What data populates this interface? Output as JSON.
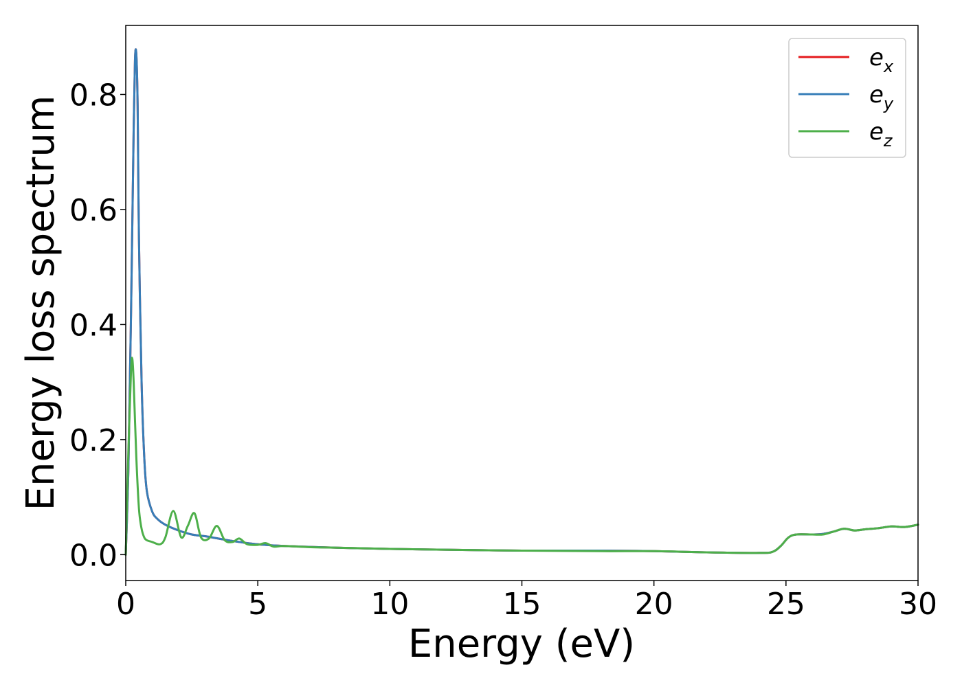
{
  "chart_data": {
    "type": "line",
    "xlabel": "Energy (eV)",
    "ylabel": "Energy loss spectrum",
    "xlim": [
      0,
      30
    ],
    "ylim": [
      -0.045,
      0.92
    ],
    "xticks": [
      0,
      5,
      10,
      15,
      20,
      25,
      30
    ],
    "xtick_labels": [
      "0",
      "5",
      "10",
      "15",
      "20",
      "25",
      "30"
    ],
    "yticks": [
      0.0,
      0.2,
      0.4,
      0.6,
      0.8
    ],
    "ytick_labels": [
      "0.0",
      "0.2",
      "0.4",
      "0.6",
      "0.8"
    ],
    "grid": false,
    "legend_position": "top-right",
    "series": [
      {
        "name": "e_x",
        "legend_base": "e",
        "legend_sub": "x",
        "color": "#e41a1c",
        "x": [
          0,
          0.1,
          0.2,
          0.3,
          0.35,
          0.4,
          0.45,
          0.5,
          0.6,
          0.7,
          0.8,
          1.0,
          1.2,
          1.5,
          2.0,
          2.5,
          3.0,
          3.5,
          4.0,
          5.0,
          6.0,
          8.0,
          10.0,
          13.0,
          15.0,
          18.0,
          20.0,
          22.0,
          24.0,
          24.5,
          24.8,
          25.1,
          25.4,
          26.0,
          26.4,
          26.8,
          27.2,
          27.6,
          28.0,
          28.5,
          29.0,
          29.5,
          30.0
        ],
        "y": [
          0.0,
          0.15,
          0.42,
          0.74,
          0.86,
          0.87,
          0.78,
          0.55,
          0.3,
          0.17,
          0.11,
          0.075,
          0.062,
          0.052,
          0.042,
          0.035,
          0.032,
          0.028,
          0.024,
          0.018,
          0.015,
          0.012,
          0.01,
          0.008,
          0.007,
          0.007,
          0.006,
          0.004,
          0.003,
          0.005,
          0.015,
          0.03,
          0.035,
          0.035,
          0.036,
          0.04,
          0.045,
          0.042,
          0.044,
          0.046,
          0.049,
          0.048,
          0.052
        ]
      },
      {
        "name": "e_y",
        "legend_base": "e",
        "legend_sub": "y",
        "color": "#377eb8",
        "x": [
          0,
          0.1,
          0.2,
          0.3,
          0.35,
          0.4,
          0.45,
          0.5,
          0.6,
          0.7,
          0.8,
          1.0,
          1.2,
          1.5,
          2.0,
          2.5,
          3.0,
          3.5,
          4.0,
          5.0,
          6.0,
          8.0,
          10.0,
          13.0,
          15.0,
          18.0,
          20.0,
          22.0,
          24.0,
          24.5,
          24.8,
          25.1,
          25.4,
          26.0,
          26.4,
          26.8,
          27.2,
          27.6,
          28.0,
          28.5,
          29.0,
          29.5,
          30.0
        ],
        "y": [
          0.0,
          0.15,
          0.42,
          0.74,
          0.86,
          0.87,
          0.78,
          0.55,
          0.3,
          0.17,
          0.11,
          0.075,
          0.062,
          0.052,
          0.042,
          0.035,
          0.032,
          0.028,
          0.024,
          0.018,
          0.015,
          0.012,
          0.01,
          0.008,
          0.007,
          0.007,
          0.006,
          0.004,
          0.003,
          0.005,
          0.015,
          0.03,
          0.035,
          0.035,
          0.036,
          0.04,
          0.045,
          0.042,
          0.044,
          0.046,
          0.049,
          0.048,
          0.052
        ]
      },
      {
        "name": "e_z",
        "legend_base": "e",
        "legend_sub": "z",
        "color": "#4daf4a",
        "x": [
          0,
          0.1,
          0.2,
          0.25,
          0.3,
          0.4,
          0.5,
          0.6,
          0.7,
          0.8,
          1.0,
          1.3,
          1.5,
          1.8,
          2.1,
          2.35,
          2.6,
          2.85,
          3.15,
          3.45,
          3.75,
          4.05,
          4.3,
          4.6,
          5.0,
          5.3,
          5.6,
          6.0,
          7.0,
          8.0,
          10.0,
          13.0,
          15.0,
          18.0,
          20.0,
          22.0,
          24.0,
          24.5,
          24.8,
          25.1,
          25.4,
          26.0,
          26.4,
          26.8,
          27.2,
          27.6,
          28.0,
          28.5,
          29.0,
          29.5,
          30.0
        ],
        "y": [
          0.0,
          0.18,
          0.32,
          0.34,
          0.3,
          0.17,
          0.08,
          0.045,
          0.03,
          0.025,
          0.022,
          0.018,
          0.03,
          0.076,
          0.03,
          0.05,
          0.072,
          0.03,
          0.028,
          0.05,
          0.025,
          0.022,
          0.028,
          0.018,
          0.017,
          0.02,
          0.014,
          0.015,
          0.013,
          0.012,
          0.01,
          0.008,
          0.007,
          0.006,
          0.006,
          0.004,
          0.003,
          0.005,
          0.015,
          0.03,
          0.035,
          0.035,
          0.035,
          0.04,
          0.045,
          0.042,
          0.044,
          0.046,
          0.049,
          0.048,
          0.052
        ]
      }
    ]
  }
}
